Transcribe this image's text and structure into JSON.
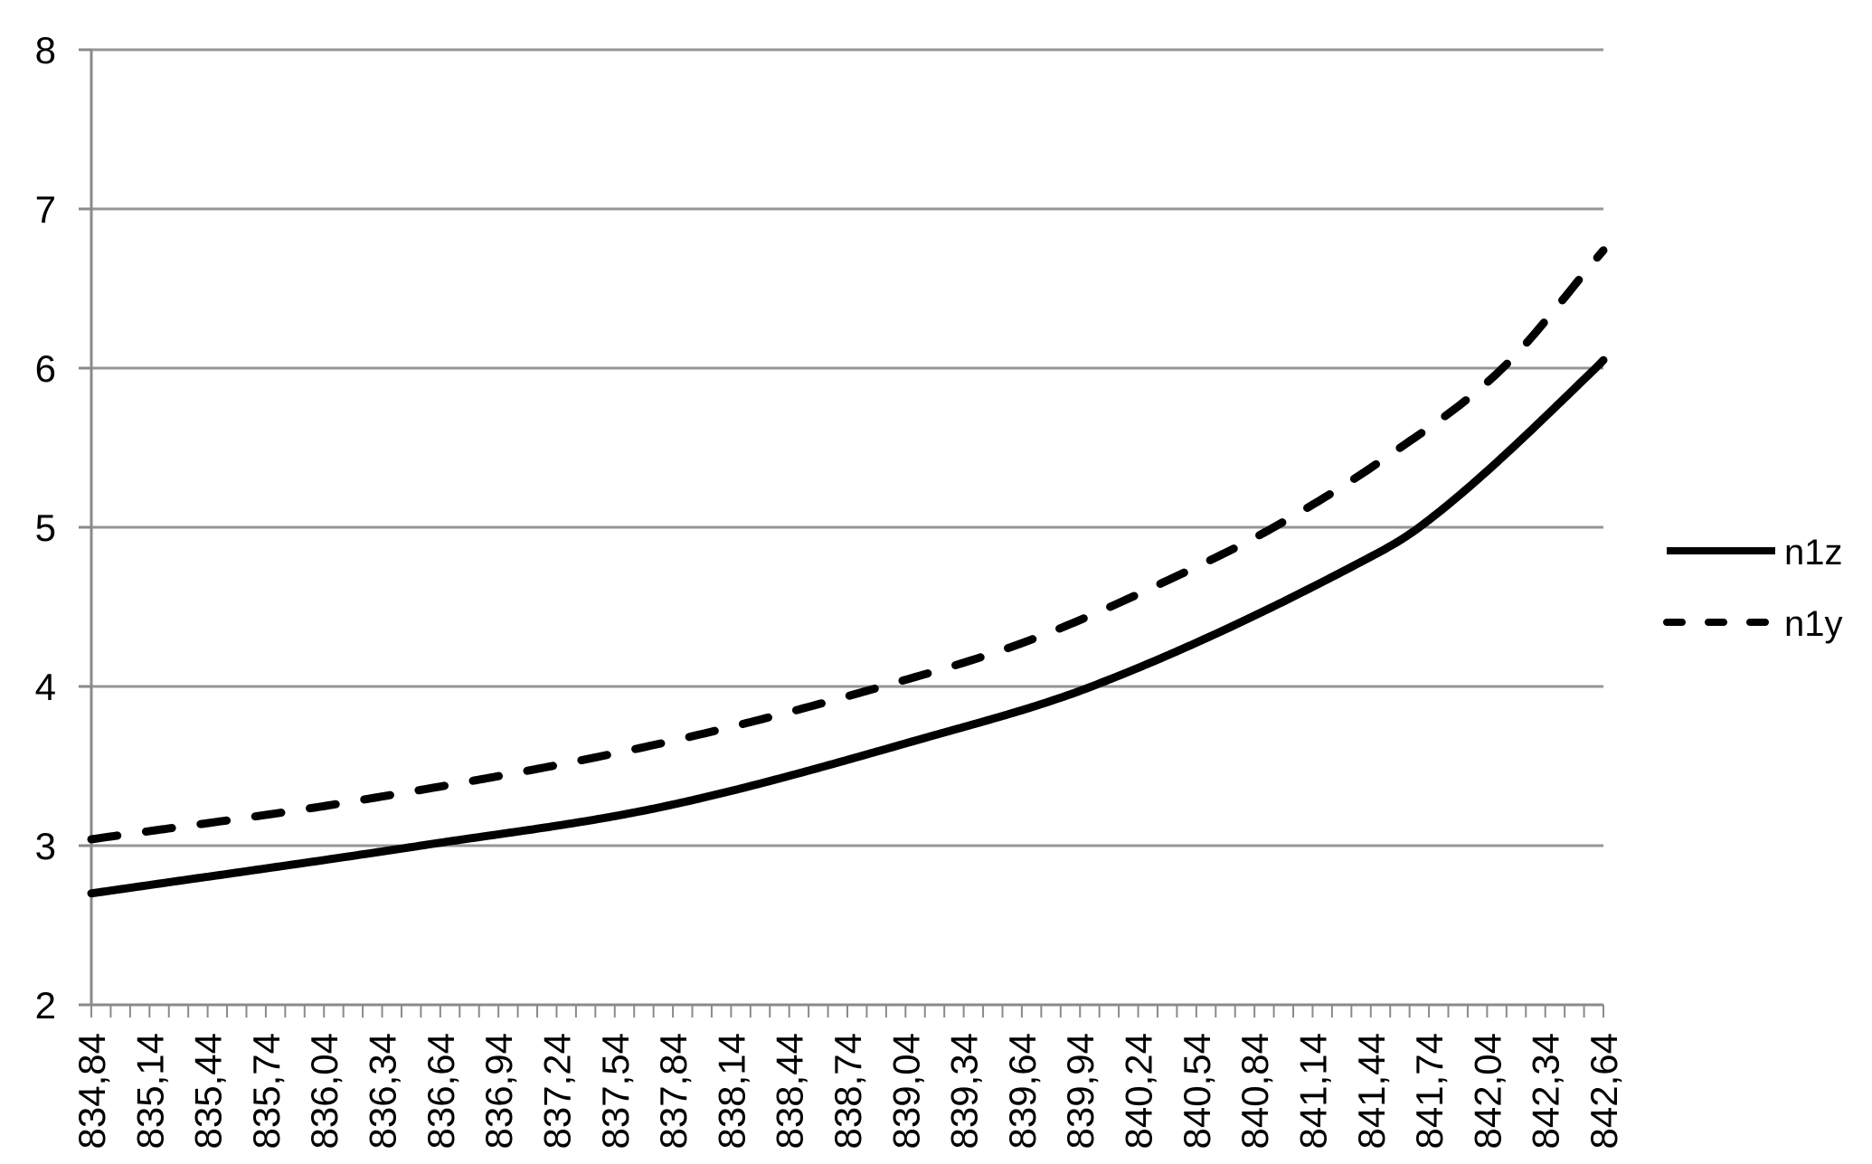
{
  "page": {
    "background": "#ffffff",
    "title": ""
  },
  "chart_data": {
    "type": "line",
    "title": "",
    "xlabel": "",
    "ylabel": "",
    "categories": [
      "834,84",
      "835,14",
      "835,44",
      "835,74",
      "836,04",
      "836,34",
      "836,64",
      "836,94",
      "837,24",
      "837,54",
      "837,84",
      "838,14",
      "838,44",
      "838,74",
      "839,04",
      "839,34",
      "839,64",
      "839,94",
      "840,24",
      "840,54",
      "840,84",
      "841,14",
      "841,44",
      "841,74",
      "842,04",
      "842,34",
      "842,64"
    ],
    "x_axis": {
      "min": 834.84,
      "max": 842.64,
      "category_step": 0.1,
      "label_every": 3,
      "minor_tick_count": 79,
      "label_rotation_degrees": 90,
      "decimal_separator": ","
    },
    "y_axis": {
      "min": 2,
      "max": 8,
      "step": 1,
      "tick_labels": [
        "2",
        "3",
        "4",
        "5",
        "6",
        "7",
        "8"
      ]
    },
    "gridlines": "horizontal",
    "legend_position": "right",
    "series": [
      {
        "name": "n1z",
        "line_style": "solid",
        "color": "#000000",
        "points": [
          [
            834.84,
            2.7
          ],
          [
            836.54,
            3.0
          ],
          [
            837.77,
            3.24
          ],
          [
            839.12,
            3.67
          ],
          [
            840.0,
            4.0
          ],
          [
            841.37,
            4.77
          ],
          [
            841.69,
            5.0
          ],
          [
            842.6,
            6.0
          ],
          [
            842.64,
            6.05
          ]
        ]
      },
      {
        "name": "n1y",
        "line_style": "dashed",
        "color": "#000000",
        "points": [
          [
            834.84,
            3.04
          ],
          [
            836.15,
            3.27
          ],
          [
            837.77,
            3.64
          ],
          [
            838.92,
            4.0
          ],
          [
            839.68,
            4.29
          ],
          [
            840.52,
            4.74
          ],
          [
            840.94,
            5.0
          ],
          [
            841.52,
            5.44
          ],
          [
            842.12,
            6.0
          ],
          [
            842.64,
            6.74
          ]
        ]
      }
    ]
  },
  "legend": {
    "items": [
      {
        "label": "n1z",
        "style": "solid"
      },
      {
        "label": "n1y",
        "style": "dashed"
      }
    ]
  },
  "style": {
    "series_color": "#000000",
    "gridline_color": "#969696",
    "axis_color": "#8a8a8a",
    "tick_color": "#8a8a8a",
    "text_color": "#000000",
    "background": "#ffffff"
  }
}
